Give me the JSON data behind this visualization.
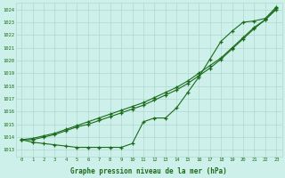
{
  "x": [
    0,
    1,
    2,
    3,
    4,
    5,
    6,
    7,
    8,
    9,
    10,
    11,
    12,
    13,
    14,
    15,
    16,
    17,
    18,
    19,
    20,
    21,
    22,
    23
  ],
  "series1": [
    1013.8,
    1013.6,
    1013.5,
    1013.4,
    1013.3,
    1013.2,
    1013.2,
    1013.2,
    1013.2,
    1013.2,
    1013.5,
    1015.2,
    1015.5,
    1015.5,
    1016.3,
    1017.5,
    1018.7,
    1020.1,
    1021.5,
    1022.3,
    1023.0,
    1023.1,
    1023.3,
    1024.2
  ],
  "series2": [
    1013.8,
    1013.8,
    1014.0,
    1014.2,
    1014.5,
    1014.8,
    1015.0,
    1015.3,
    1015.6,
    1015.9,
    1016.2,
    1016.5,
    1016.9,
    1017.3,
    1017.7,
    1018.2,
    1018.8,
    1019.4,
    1020.1,
    1020.9,
    1021.7,
    1022.5,
    1023.2,
    1024.0
  ],
  "series3": [
    1013.8,
    1013.9,
    1014.1,
    1014.3,
    1014.6,
    1014.9,
    1015.2,
    1015.5,
    1015.8,
    1016.1,
    1016.4,
    1016.7,
    1017.1,
    1017.5,
    1017.9,
    1018.4,
    1019.0,
    1019.6,
    1020.2,
    1021.0,
    1021.8,
    1022.6,
    1023.2,
    1024.1
  ],
  "line_color": "#1a6b1a",
  "marker": "+",
  "bg_color": "#cef0ea",
  "grid_color": "#b0d8d2",
  "tick_color": "#1a6b1a",
  "xlabel": "Graphe pression niveau de la mer (hPa)",
  "ylim_min": 1012.5,
  "ylim_max": 1024.5,
  "yticks": [
    1013,
    1014,
    1015,
    1016,
    1017,
    1018,
    1019,
    1020,
    1021,
    1022,
    1023,
    1024
  ],
  "xlim_min": -0.5,
  "xlim_max": 23.5,
  "figw": 3.2,
  "figh": 2.0,
  "dpi": 100
}
